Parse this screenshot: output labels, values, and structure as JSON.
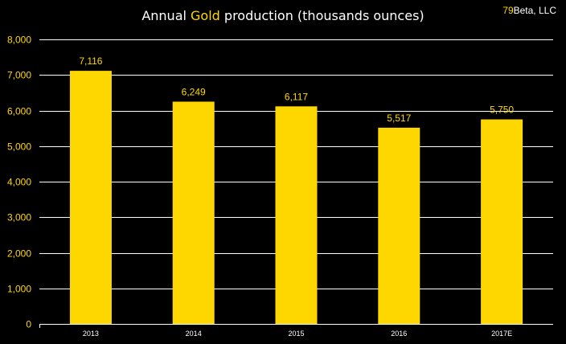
{
  "title_parts": {
    "pre": "Annual ",
    "highlight": "Gold",
    "post": " production (thousands ounces)"
  },
  "brand": {
    "num": "79",
    "rest": "Beta, LLC"
  },
  "colors": {
    "bar": "#FFD700",
    "background": "#000000",
    "grid": "#FFFFFF",
    "tick_label": "#FFD700",
    "category_label": "#FFFFFF"
  },
  "chart_data": {
    "type": "bar",
    "title": "Annual Gold production (thousands ounces)",
    "categories": [
      "2013",
      "2014",
      "2015",
      "2016",
      "2017E"
    ],
    "values": [
      7116,
      6249,
      6117,
      5517,
      5750
    ],
    "data_labels": [
      "7,116",
      "6,249",
      "6,117",
      "5,517",
      "5,750"
    ],
    "ylim": [
      0,
      8000
    ],
    "yticks": [
      0,
      1000,
      2000,
      3000,
      4000,
      5000,
      6000,
      7000,
      8000
    ],
    "ytick_labels": [
      "0",
      "1,000",
      "2,000",
      "3,000",
      "4,000",
      "5,000",
      "6,000",
      "7,000",
      "8,000"
    ],
    "grid": true,
    "xlabel": "",
    "ylabel": ""
  }
}
